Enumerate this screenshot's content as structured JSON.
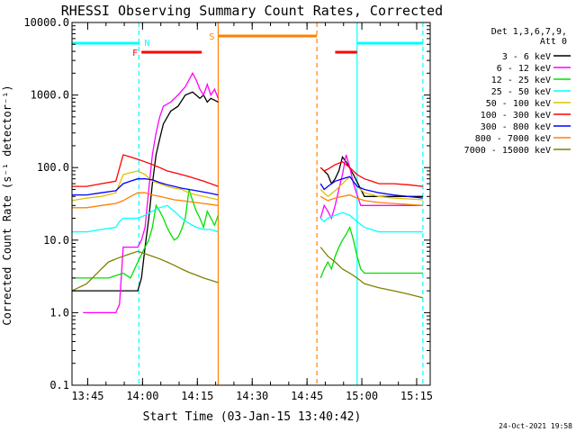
{
  "chart_data": {
    "type": "line",
    "title": "RHESSI Observing Summary Count Rates, Corrected",
    "xlabel": "Start Time (03-Jan-15 13:40:42)",
    "ylabel": "Corrected Count Rate (s⁻¹ detector⁻¹)",
    "yscale": "log",
    "x_unit": "minutes after 13:40:42",
    "xlim": [
      0,
      98
    ],
    "ylim": [
      0.1,
      10000
    ],
    "x_ticks": [
      {
        "t": 4.3,
        "label": "13:45"
      },
      {
        "t": 19.3,
        "label": "14:00"
      },
      {
        "t": 34.3,
        "label": "14:15"
      },
      {
        "t": 49.3,
        "label": "14:30"
      },
      {
        "t": 64.3,
        "label": "14:45"
      },
      {
        "t": 79.3,
        "label": "15:00"
      },
      {
        "t": 94.3,
        "label": "15:15"
      }
    ],
    "y_ticks": [
      {
        "v": 0.1,
        "label": "0.1"
      },
      {
        "v": 1,
        "label": "1.0"
      },
      {
        "v": 10,
        "label": "10.0"
      },
      {
        "v": 100,
        "label": "100.0"
      },
      {
        "v": 1000,
        "label": "1000.0"
      },
      {
        "v": 10000,
        "label": "10000.0"
      }
    ],
    "legend": {
      "position": "right",
      "header": [
        "Det 1,3,6,7,9,",
        "Att 0"
      ]
    },
    "series": [
      {
        "name": "3 - 6 keV",
        "color": "#000000",
        "x": [
          0,
          10,
          14,
          16,
          17,
          18,
          19,
          20,
          21,
          22,
          23,
          24,
          25,
          27,
          29,
          31,
          33,
          35,
          36,
          37,
          38,
          39,
          40,
          68,
          70,
          71,
          72,
          73,
          74,
          75,
          77,
          80,
          84,
          88,
          92,
          96
        ],
        "y": [
          2,
          2,
          2,
          2,
          2,
          2,
          3,
          8,
          20,
          60,
          150,
          250,
          400,
          600,
          700,
          1000,
          1100,
          900,
          1000,
          800,
          900,
          850,
          800,
          100,
          80,
          60,
          70,
          90,
          140,
          120,
          80,
          40,
          40,
          40,
          40,
          40
        ]
      },
      {
        "name": "6 - 12 keV",
        "color": "#ff00ff",
        "x": [
          3,
          8,
          10,
          12,
          13,
          14,
          16,
          17,
          18,
          19,
          20,
          21,
          22,
          23,
          24,
          25,
          27,
          29,
          31,
          33,
          34,
          35,
          36,
          37,
          38,
          39,
          40,
          68,
          69,
          70,
          71,
          72,
          73,
          74,
          75,
          76,
          77,
          79,
          80,
          84,
          88,
          92,
          96
        ],
        "y": [
          1,
          1,
          1,
          1,
          1.3,
          8,
          8,
          8,
          8,
          10,
          15,
          50,
          150,
          300,
          500,
          700,
          800,
          1000,
          1300,
          2000,
          1600,
          1200,
          1000,
          1400,
          1000,
          1200,
          900,
          20,
          30,
          25,
          20,
          30,
          50,
          80,
          150,
          100,
          60,
          30,
          30,
          30,
          30,
          30,
          30
        ]
      },
      {
        "name": "12 - 25 keV",
        "color": "#00e000",
        "x": [
          0,
          6,
          10,
          14,
          16,
          18,
          20,
          21,
          22,
          23,
          24,
          25,
          26,
          27,
          28,
          29,
          30,
          31,
          32,
          33,
          34,
          35,
          36,
          37,
          38,
          39,
          40,
          68,
          69,
          70,
          71,
          72,
          73,
          74,
          75,
          76,
          77,
          78,
          79,
          80,
          84,
          88,
          92,
          96
        ],
        "y": [
          3,
          3,
          3,
          3.5,
          3,
          5,
          8,
          10,
          15,
          30,
          25,
          20,
          15,
          12,
          10,
          11,
          14,
          20,
          50,
          35,
          25,
          20,
          15,
          25,
          20,
          16,
          22,
          3,
          4,
          5,
          4,
          6,
          8,
          10,
          12,
          15,
          10,
          6,
          4,
          3.5,
          3.5,
          3.5,
          3.5,
          3.5
        ]
      },
      {
        "name": "25 - 50 keV",
        "color": "#00ffff",
        "x": [
          0,
          4,
          8,
          12,
          13,
          14,
          16,
          18,
          20,
          22,
          24,
          26,
          28,
          30,
          32,
          34,
          36,
          38,
          40,
          68,
          69,
          70,
          72,
          74,
          76,
          78,
          80,
          84,
          88,
          92,
          96
        ],
        "y": [
          13,
          13,
          14,
          15,
          18,
          20,
          20,
          20,
          22,
          25,
          28,
          30,
          25,
          20,
          17,
          15,
          14,
          14,
          13,
          20,
          18,
          20,
          22,
          24,
          22,
          18,
          15,
          13,
          13,
          13,
          13
        ]
      },
      {
        "name": "50 - 100 keV",
        "color": "#e0c000",
        "x": [
          0,
          4,
          8,
          12,
          14,
          16,
          18,
          20,
          22,
          24,
          26,
          28,
          30,
          32,
          34,
          36,
          38,
          40,
          68,
          70,
          72,
          74,
          76,
          78,
          80,
          84,
          88,
          92,
          96
        ],
        "y": [
          35,
          38,
          40,
          45,
          80,
          85,
          90,
          80,
          65,
          60,
          55,
          52,
          50,
          45,
          42,
          40,
          38,
          36,
          50,
          40,
          48,
          60,
          75,
          55,
          45,
          40,
          38,
          37,
          36
        ]
      },
      {
        "name": "100 - 300 keV",
        "color": "#ff0000",
        "x": [
          0,
          4,
          8,
          12,
          14,
          16,
          18,
          20,
          22,
          24,
          26,
          28,
          30,
          32,
          34,
          36,
          38,
          40,
          68,
          69,
          70,
          72,
          74,
          76,
          78,
          80,
          82,
          84,
          88,
          92,
          96
        ],
        "y": [
          55,
          55,
          60,
          65,
          150,
          140,
          130,
          120,
          110,
          100,
          90,
          85,
          80,
          75,
          70,
          65,
          60,
          55,
          100,
          90,
          95,
          110,
          120,
          100,
          80,
          70,
          65,
          60,
          60,
          58,
          55
        ]
      },
      {
        "name": "300 - 800 keV",
        "color": "#0000ff",
        "x": [
          0,
          4,
          8,
          12,
          14,
          16,
          18,
          20,
          22,
          24,
          26,
          28,
          30,
          32,
          34,
          36,
          38,
          40,
          68,
          69,
          70,
          72,
          74,
          76,
          78,
          80,
          84,
          88,
          92,
          96
        ],
        "y": [
          42,
          42,
          45,
          48,
          60,
          65,
          70,
          70,
          68,
          62,
          58,
          55,
          52,
          50,
          48,
          46,
          44,
          42,
          60,
          50,
          55,
          65,
          70,
          75,
          55,
          50,
          45,
          42,
          40,
          38
        ]
      },
      {
        "name": "800 - 7000 keV",
        "color": "#ff8000",
        "x": [
          0,
          4,
          8,
          12,
          14,
          16,
          18,
          20,
          22,
          24,
          26,
          28,
          30,
          32,
          34,
          36,
          38,
          40,
          68,
          70,
          72,
          74,
          76,
          78,
          80,
          84,
          88,
          92,
          96
        ],
        "y": [
          28,
          28,
          30,
          32,
          35,
          40,
          45,
          45,
          42,
          40,
          38,
          36,
          35,
          34,
          33,
          32,
          31,
          30,
          40,
          35,
          38,
          40,
          42,
          38,
          35,
          33,
          32,
          31,
          30
        ]
      },
      {
        "name": "7000 - 15000 keV",
        "color": "#808000",
        "x": [
          0,
          4,
          8,
          10,
          12,
          14,
          16,
          18,
          20,
          22,
          24,
          26,
          28,
          30,
          32,
          34,
          36,
          38,
          40,
          68,
          70,
          72,
          74,
          76,
          78,
          80,
          84,
          88,
          92,
          96
        ],
        "y": [
          2,
          2.5,
          4,
          5,
          5.5,
          6,
          6.5,
          7,
          6.5,
          6,
          5.5,
          5,
          4.5,
          4,
          3.6,
          3.3,
          3,
          2.8,
          2.6,
          8,
          6,
          5,
          4,
          3.5,
          3,
          2.5,
          2.2,
          2,
          1.8,
          1.6
        ]
      }
    ],
    "state_bars": [
      {
        "color": "#00ffff",
        "t0": 0,
        "t1": 18.5,
        "label": ""
      },
      {
        "color": "#00ffff",
        "t0": 78,
        "t1": 96,
        "label": ""
      },
      {
        "color": "#ff0000",
        "t0": 19,
        "t1": 35.5,
        "label": "F"
      },
      {
        "color": "#ff0000",
        "t0": 72,
        "t1": 78,
        "label": ""
      },
      {
        "color": "#ff8000",
        "t0": 40,
        "t1": 67,
        "label": "S"
      }
    ],
    "night_marker": {
      "color": "#00ffff",
      "t": 18.3,
      "label": "N"
    },
    "vertical_lines": [
      {
        "t": 18.3,
        "color": "#00ffff",
        "dashed": true
      },
      {
        "t": 40,
        "color": "#ff8000",
        "dashed": false
      },
      {
        "t": 67,
        "color": "#ff8000",
        "dashed": true
      },
      {
        "t": 78,
        "color": "#00ffff",
        "dashed": false
      },
      {
        "t": 96,
        "color": "#00ffff",
        "dashed": true
      }
    ],
    "footer_date": "24-Oct-2021 19:58"
  }
}
